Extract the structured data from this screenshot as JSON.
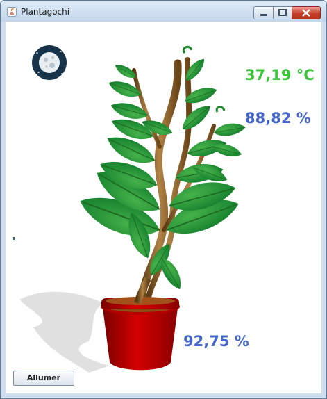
{
  "window": {
    "title": "Plantagochi"
  },
  "readings": {
    "temperature": {
      "text": "37,19 °C",
      "color": "#3cc43c"
    },
    "humidity": {
      "text": "88,82 %",
      "color": "#4466cc"
    },
    "soil_moisture": {
      "text": "92,75 %",
      "color": "#4466cc"
    }
  },
  "icons": {
    "day_night": "moon-icon",
    "app": "java-icon"
  },
  "controls": {
    "toggle_label": "Allumer"
  }
}
